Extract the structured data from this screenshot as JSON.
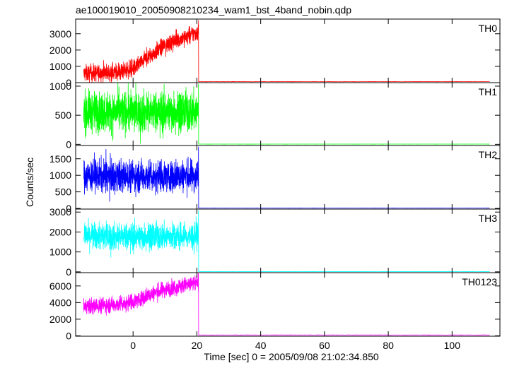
{
  "chart_data": {
    "type": "line",
    "title": "ae100019010_20050908210234_wam1_bst_4band_nobin.qdp",
    "xlabel": "Time [sec] 0 = 2005/09/08 21:02:34.850",
    "ylabel": "Counts/sec",
    "xlim": [
      -18,
      115
    ],
    "x_ticks": [
      0,
      20,
      40,
      60,
      80,
      100
    ],
    "x_tick_labels": [
      "0",
      "20",
      "40",
      "60",
      "80",
      "100"
    ],
    "cutoff_time": 20.5,
    "data_start": -15.5,
    "data_end": 112,
    "panels": [
      {
        "label": "TH0",
        "color": "#ff0000",
        "ylim": [
          0,
          3900
        ],
        "y_ticks": [
          0,
          1000,
          2000,
          3000
        ],
        "y_tick_labels": [
          "0",
          "1000",
          "2000",
          "3000"
        ],
        "trend_t": [
          -15.5,
          -5,
          0,
          5,
          10,
          15,
          20.5
        ],
        "trend_v": [
          550,
          650,
          850,
          1600,
          2300,
          2700,
          3100
        ],
        "noise": 260,
        "post_level": 60
      },
      {
        "label": "TH1",
        "color": "#00ff00",
        "ylim": [
          -20,
          1060
        ],
        "y_ticks": [
          0,
          500,
          1000
        ],
        "y_tick_labels": [
          "0",
          "500",
          "1000"
        ],
        "trend_t": [
          -15.5,
          20.5
        ],
        "trend_v": [
          560,
          560
        ],
        "noise": 175,
        "post_level": 4
      },
      {
        "label": "TH2",
        "color": "#0000ff",
        "ylim": [
          -20,
          1900
        ],
        "y_ticks": [
          0,
          500,
          1000,
          1500
        ],
        "y_tick_labels": [
          "0",
          "500",
          "1000",
          "1500"
        ],
        "trend_t": [
          -15.5,
          20.5
        ],
        "trend_v": [
          980,
          980
        ],
        "noise": 240,
        "post_level": 10
      },
      {
        "label": "TH3",
        "color": "#00ffff",
        "ylim": [
          -40,
          3150
        ],
        "y_ticks": [
          0,
          1000,
          2000,
          3000
        ],
        "y_tick_labels": [
          "0",
          "1000",
          "2000",
          "3000"
        ],
        "trend_t": [
          -15.5,
          20.5
        ],
        "trend_v": [
          1780,
          1780
        ],
        "noise": 340,
        "post_level": 15
      },
      {
        "label": "TH0123",
        "color": "#ff00ff",
        "ylim": [
          -50,
          7600
        ],
        "y_ticks": [
          0,
          2000,
          4000,
          6000
        ],
        "y_tick_labels": [
          "0",
          "2000",
          "4000",
          "6000"
        ],
        "trend_t": [
          -15.5,
          -5,
          0,
          5,
          10,
          15,
          20.5
        ],
        "trend_v": [
          3500,
          3800,
          4100,
          4900,
          5600,
          6000,
          6400
        ],
        "noise": 480,
        "post_level": 100
      }
    ]
  }
}
